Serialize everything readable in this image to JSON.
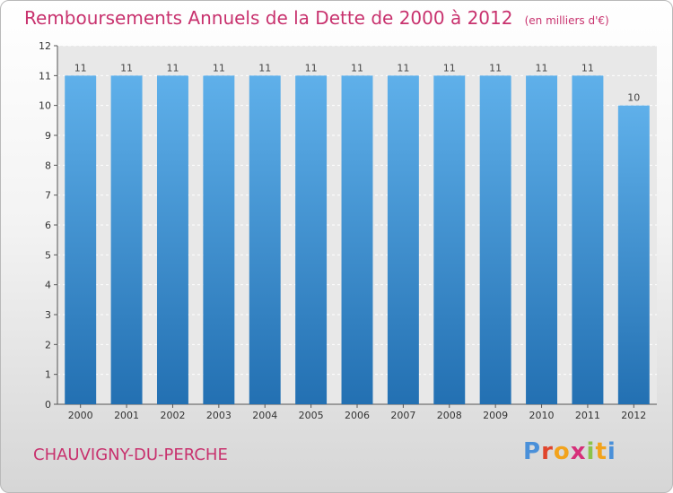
{
  "title": "Remboursements Annuels de la Dette de 2000 à 2012",
  "subtitle": "(en milliers d'€)",
  "commune": "CHAUVIGNY-DU-PERCHE",
  "logo": {
    "text": "Proxiti",
    "letter_colors": [
      "#4a90d9",
      "#e0452c",
      "#f2a31c",
      "#d62f7a",
      "#8bc34a",
      "#f2a31c",
      "#4a90d9"
    ]
  },
  "colors": {
    "title": "#c8326e",
    "bar_top": "#5fb0ea",
    "bar_bottom": "#2370b2",
    "plot_bg": "#e8e8e8"
  },
  "chart_data": {
    "type": "bar",
    "categories": [
      "2000",
      "2001",
      "2002",
      "2003",
      "2004",
      "2005",
      "2006",
      "2007",
      "2008",
      "2009",
      "2010",
      "2011",
      "2012"
    ],
    "values": [
      11,
      11,
      11,
      11,
      11,
      11,
      11,
      11,
      11,
      11,
      11,
      11,
      10
    ],
    "ylim": [
      0,
      12
    ],
    "yticks": [
      0,
      1,
      2,
      3,
      4,
      5,
      6,
      7,
      8,
      9,
      10,
      11,
      12
    ],
    "grid": true,
    "xlabel": "",
    "ylabel": ""
  }
}
